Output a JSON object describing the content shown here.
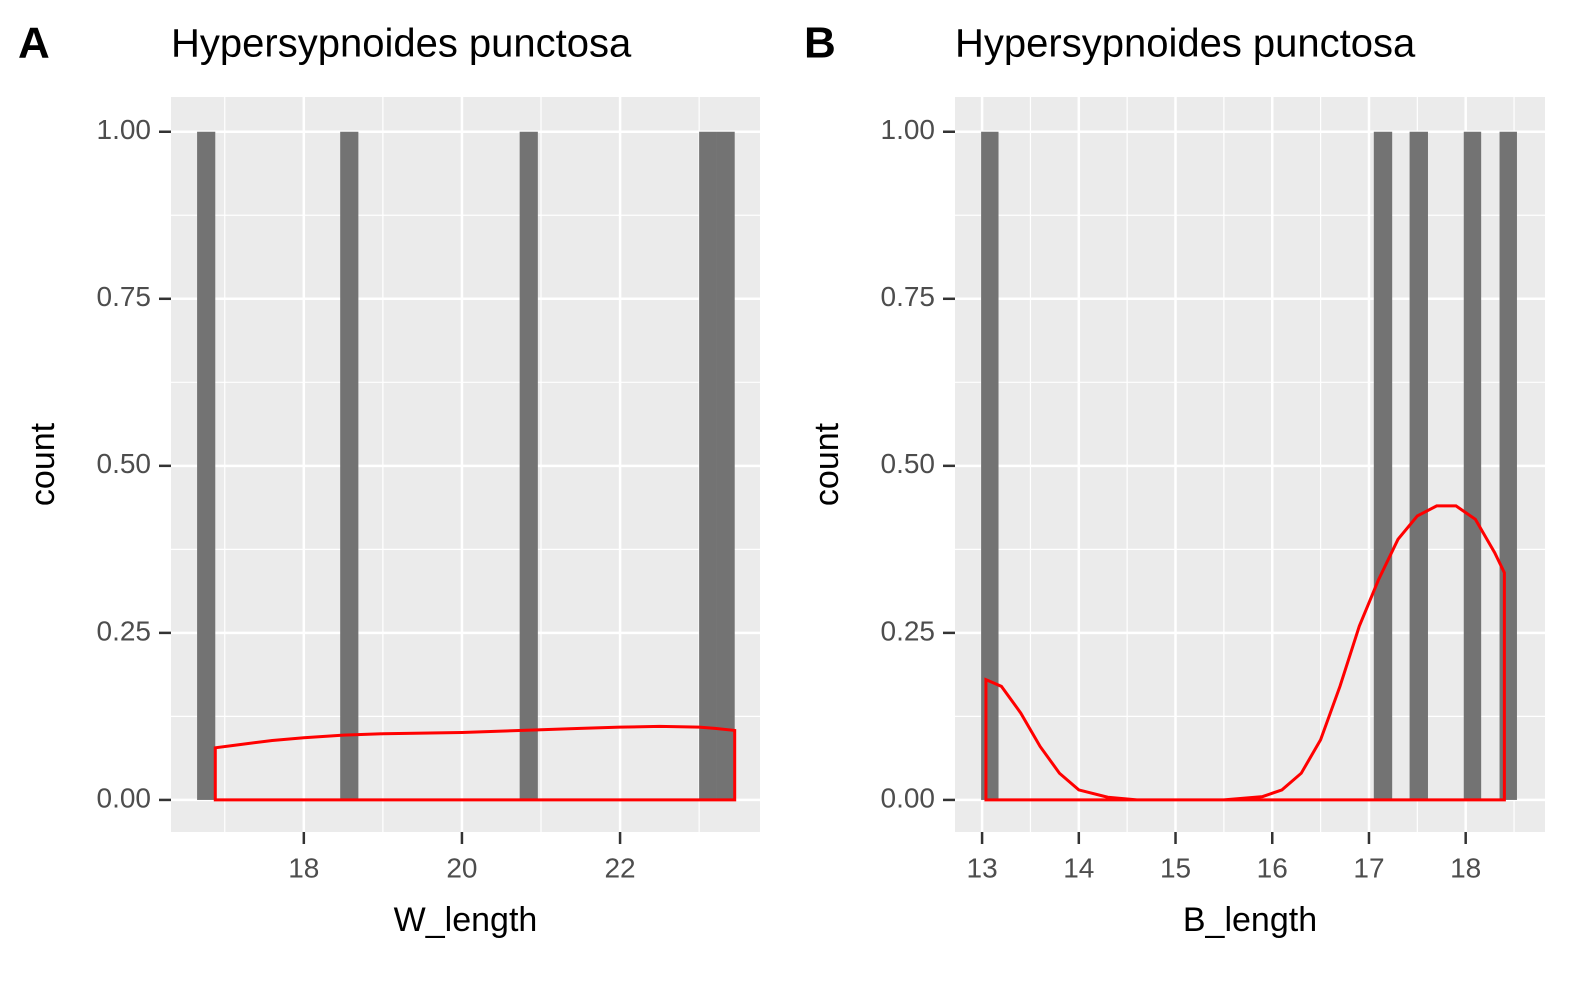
{
  "chart_data": [
    {
      "type": "histogram",
      "tag": "A",
      "title": "Hypersypnoides punctosa",
      "x_label": "W_length",
      "y_label": "count",
      "bins": [
        16.65,
        16.88,
        17.1,
        17.33,
        17.56,
        17.78,
        18.01,
        18.24,
        18.46,
        18.69,
        18.92,
        19.14,
        19.37,
        19.6,
        19.82,
        20.05,
        20.28,
        20.5,
        20.73,
        20.96,
        21.18,
        21.41,
        21.64,
        21.86,
        22.09,
        22.32,
        22.54,
        22.77,
        23.0,
        23.22,
        23.45
      ],
      "counts": [
        1,
        0,
        0,
        0,
        0,
        0,
        0,
        0,
        1,
        0,
        0,
        0,
        0,
        0,
        0,
        0,
        0,
        0,
        1,
        0,
        0,
        0,
        0,
        0,
        0,
        0,
        0,
        0,
        1,
        1
      ],
      "color": "#737373",
      "density": {
        "color": "#ff0000",
        "x": [
          16.88,
          17.2,
          17.6,
          18.0,
          18.5,
          19.0,
          19.5,
          20.0,
          20.5,
          21.0,
          21.5,
          22.0,
          22.5,
          23.0,
          23.2,
          23.45
        ],
        "y": [
          0.078,
          0.083,
          0.089,
          0.093,
          0.097,
          0.099,
          0.1,
          0.101,
          0.103,
          0.105,
          0.107,
          0.109,
          0.11,
          0.109,
          0.107,
          0.104
        ]
      },
      "xlim": [
        16.32,
        23.77
      ],
      "ylim": [
        -0.048,
        1.052
      ],
      "xticks": [
        18,
        20,
        22
      ],
      "yticks": [
        {
          "value": 0,
          "label": "0.00"
        },
        0.25,
        {
          "value": 0.5,
          "label": "0.50"
        },
        0.75,
        {
          "value": 1,
          "label": "1.00"
        }
      ],
      "grid": true
    },
    {
      "type": "histogram",
      "tag": "B",
      "title": "Hypersypnoides punctosa",
      "x_label": "B_length",
      "y_label": "count",
      "bins": [
        12.99,
        13.17,
        13.36,
        13.54,
        13.73,
        13.91,
        14.1,
        14.28,
        14.47,
        14.65,
        14.84,
        15.02,
        15.21,
        15.39,
        15.58,
        15.76,
        15.95,
        16.13,
        16.31,
        16.5,
        16.68,
        16.87,
        17.05,
        17.24,
        17.42,
        17.61,
        17.79,
        17.98,
        18.16,
        18.35,
        18.53
      ],
      "counts": [
        1,
        0,
        0,
        0,
        0,
        0,
        0,
        0,
        0,
        0,
        0,
        0,
        0,
        0,
        0,
        0,
        0,
        0,
        0,
        0,
        0,
        0,
        1,
        0,
        1,
        0,
        0,
        1,
        0,
        1
      ],
      "color": "#737373",
      "density": {
        "color": "#ff0000",
        "x": [
          13.04,
          13.2,
          13.4,
          13.6,
          13.8,
          14.0,
          14.3,
          14.6,
          15.0,
          15.5,
          15.9,
          16.1,
          16.3,
          16.5,
          16.7,
          16.9,
          17.1,
          17.3,
          17.5,
          17.7,
          17.9,
          18.1,
          18.3,
          18.4
        ],
        "y": [
          0.18,
          0.17,
          0.13,
          0.08,
          0.04,
          0.015,
          0.004,
          0,
          0,
          0,
          0.005,
          0.015,
          0.04,
          0.09,
          0.17,
          0.26,
          0.33,
          0.39,
          0.425,
          0.44,
          0.44,
          0.42,
          0.37,
          0.34
        ]
      },
      "xlim": [
        12.72,
        18.82
      ],
      "ylim": [
        -0.048,
        1.052
      ],
      "xticks": [
        13,
        14,
        15,
        16,
        17,
        18
      ],
      "yticks": [
        {
          "value": 0,
          "label": "0.00"
        },
        0.25,
        {
          "value": 0.5,
          "label": "0.50"
        },
        0.75,
        {
          "value": 1,
          "label": "1.00"
        }
      ],
      "grid": true
    }
  ]
}
